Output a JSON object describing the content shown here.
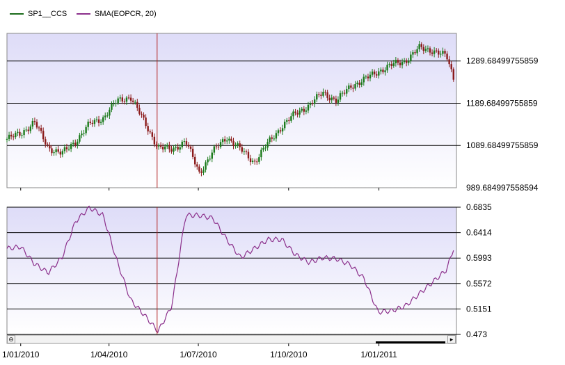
{
  "legend": [
    {
      "label": "SP1__CCS",
      "color": "#1a6b1a"
    },
    {
      "label": "SMA(EOPCR, 20)",
      "color": "#8b2f8b"
    }
  ],
  "colors": {
    "plot_bg_top": "#dedcf8",
    "plot_bg_bottom": "#ffffff",
    "up_candle": "#1a7a1a",
    "down_candle": "#8b1a1a",
    "sma_line": "#8b2f8b",
    "cursor_line": "#b22222"
  },
  "chart_data": [
    {
      "type": "line",
      "name": "price-panel",
      "series": [
        {
          "name": "SP1__CCS"
        }
      ],
      "y_ticks": [
        "1289.68499755859",
        "1189.68499755859",
        "1089.68499755859",
        "989.684997558594"
      ],
      "ylim": [
        989.684997558594,
        1355
      ],
      "x": [
        "2009-12-18",
        "2010-01-01",
        "2010-01-15",
        "2010-01-29",
        "2010-02-12",
        "2010-02-26",
        "2010-03-12",
        "2010-03-26",
        "2010-04-09",
        "2010-04-23",
        "2010-05-07",
        "2010-05-21",
        "2010-06-04",
        "2010-06-18",
        "2010-07-02",
        "2010-07-16",
        "2010-07-30",
        "2010-08-13",
        "2010-08-27",
        "2010-09-10",
        "2010-09-24",
        "2010-10-08",
        "2010-10-22",
        "2010-11-05",
        "2010-11-19",
        "2010-12-03",
        "2010-12-17",
        "2010-12-31",
        "2011-01-14",
        "2011-01-28",
        "2011-02-11",
        "2011-02-25",
        "2011-03-11",
        "2011-03-18"
      ],
      "values": [
        1105,
        1118,
        1145,
        1085,
        1070,
        1100,
        1140,
        1155,
        1195,
        1205,
        1145,
        1085,
        1080,
        1100,
        1025,
        1075,
        1110,
        1080,
        1050,
        1095,
        1135,
        1165,
        1185,
        1215,
        1195,
        1230,
        1245,
        1265,
        1280,
        1290,
        1320,
        1315,
        1300,
        1250
      ]
    },
    {
      "type": "line",
      "name": "sma-panel",
      "series": [
        {
          "name": "SMA(EOPCR, 20)"
        }
      ],
      "y_ticks": [
        "0.6835",
        "0.6414",
        "0.5993",
        "0.5572",
        "0.5151",
        "0.473"
      ],
      "ylim": [
        0.473,
        0.6835
      ],
      "x_ticks": [
        "1/01/2010",
        "1/04/2010",
        "1/07/2010",
        "1/10/2010",
        "1/01/2011"
      ],
      "x": [
        "2009-12-18",
        "2010-01-01",
        "2010-01-15",
        "2010-01-29",
        "2010-02-12",
        "2010-02-26",
        "2010-03-12",
        "2010-03-26",
        "2010-04-09",
        "2010-04-23",
        "2010-05-07",
        "2010-05-21",
        "2010-06-04",
        "2010-06-18",
        "2010-07-02",
        "2010-07-16",
        "2010-07-30",
        "2010-08-13",
        "2010-08-27",
        "2010-09-10",
        "2010-09-24",
        "2010-10-08",
        "2010-10-22",
        "2010-11-05",
        "2010-11-19",
        "2010-12-03",
        "2010-12-17",
        "2010-12-31",
        "2011-01-14",
        "2011-01-28",
        "2011-02-11",
        "2011-02-25",
        "2011-03-11",
        "2011-03-18"
      ],
      "values": [
        0.615,
        0.618,
        0.59,
        0.575,
        0.6,
        0.66,
        0.683,
        0.67,
        0.595,
        0.53,
        0.505,
        0.478,
        0.52,
        0.67,
        0.67,
        0.665,
        0.63,
        0.6,
        0.615,
        0.63,
        0.63,
        0.605,
        0.592,
        0.6,
        0.598,
        0.588,
        0.565,
        0.51,
        0.512,
        0.52,
        0.54,
        0.56,
        0.58,
        0.615
      ]
    }
  ]
}
